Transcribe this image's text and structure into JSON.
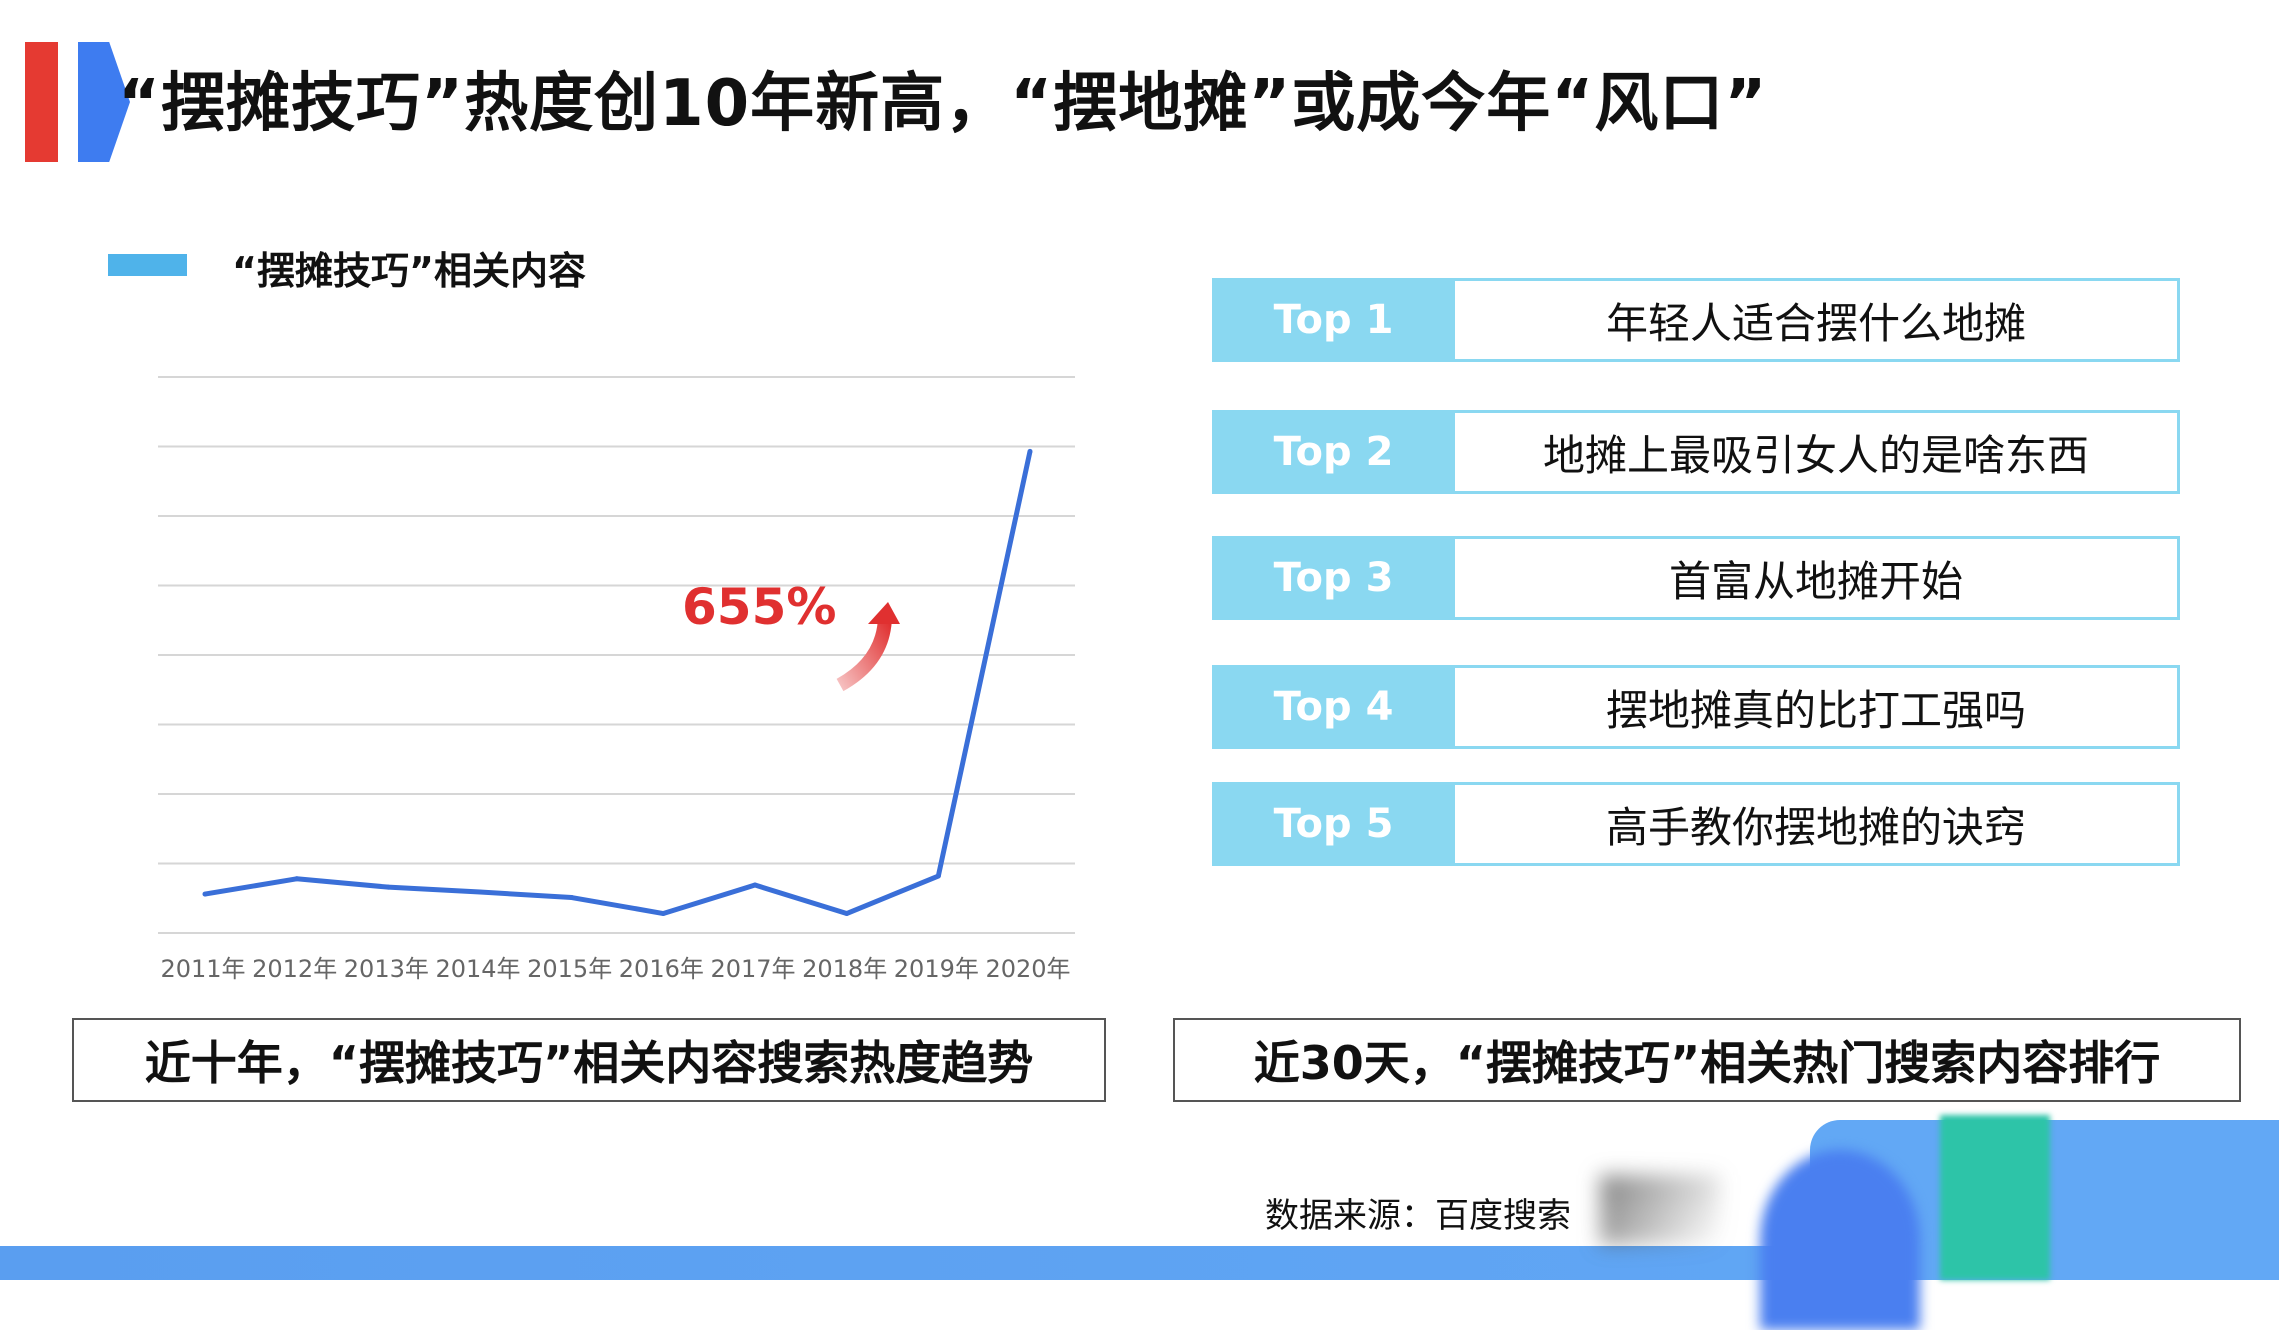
{
  "title": "“摆摊技巧”热度创10年新高，“摆地摊”或成今年“风口”",
  "legend_label": "“摆摊技巧”相关内容",
  "annotation": "655%",
  "captions": {
    "left": "近十年，“摆摊技巧”相关内容搜索热度趋势",
    "right": "近30天，“摆摊技巧”相关热门搜索内容排行"
  },
  "top_list": [
    {
      "rank": "Top 1",
      "text": "年轻人适合摆什么地摊"
    },
    {
      "rank": "Top 2",
      "text": "地摊上最吸引女人的是啥东西"
    },
    {
      "rank": "Top 3",
      "text": "首富从地摊开始"
    },
    {
      "rank": "Top 4",
      "text": "摆地摊真的比打工强吗"
    },
    {
      "rank": "Top 5",
      "text": "高手教你摆地摊的诀窍"
    }
  ],
  "source": "数据来源：百度搜索",
  "colors": {
    "accent_red": "#e53a32",
    "accent_blue": "#3e7cf0",
    "line": "#3a6fd8",
    "rank_bg": "#8ad8f1",
    "annotation": "#e03030"
  },
  "chart_data": {
    "type": "line",
    "categories": [
      "2011年",
      "2012年",
      "2013年",
      "2014年",
      "2015年",
      "2016年",
      "2017年",
      "2018年",
      "2019年",
      "2020年"
    ],
    "series": [
      {
        "name": "“摆摊技巧”相关内容",
        "values": [
          0.56,
          0.78,
          0.66,
          0.59,
          0.51,
          0.28,
          0.69,
          0.28,
          0.82,
          6.93
        ]
      }
    ],
    "ylim": [
      0,
      8
    ],
    "grid": true,
    "legend": "top-left",
    "annotations": [
      "655%"
    ]
  }
}
